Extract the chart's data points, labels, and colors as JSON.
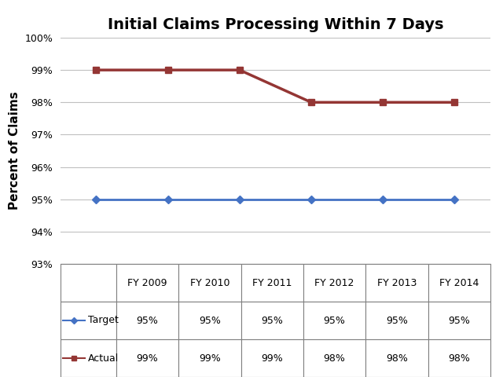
{
  "title": "Initial Claims Processing Within 7 Days",
  "ylabel": "Percent of Claims",
  "categories": [
    "FY 2009",
    "FY 2010",
    "FY 2011",
    "FY 2012",
    "FY 2013",
    "FY 2014"
  ],
  "target_values": [
    95,
    95,
    95,
    95,
    95,
    95
  ],
  "actual_values": [
    99,
    99,
    99,
    98,
    98,
    98
  ],
  "target_color": "#4472C4",
  "actual_color": "#943634",
  "ylim_min": 93,
  "ylim_max": 100,
  "yticks": [
    93,
    94,
    95,
    96,
    97,
    98,
    99,
    100
  ],
  "title_fontsize": 14,
  "axis_label_fontsize": 11,
  "tick_fontsize": 9,
  "table_target_row": [
    "95%",
    "95%",
    "95%",
    "95%",
    "95%",
    "95%"
  ],
  "table_actual_row": [
    "99%",
    "99%",
    "99%",
    "98%",
    "98%",
    "98%"
  ],
  "background_color": "#ffffff",
  "grid_color": "#c0c0c0",
  "table_border_color": "#808080"
}
